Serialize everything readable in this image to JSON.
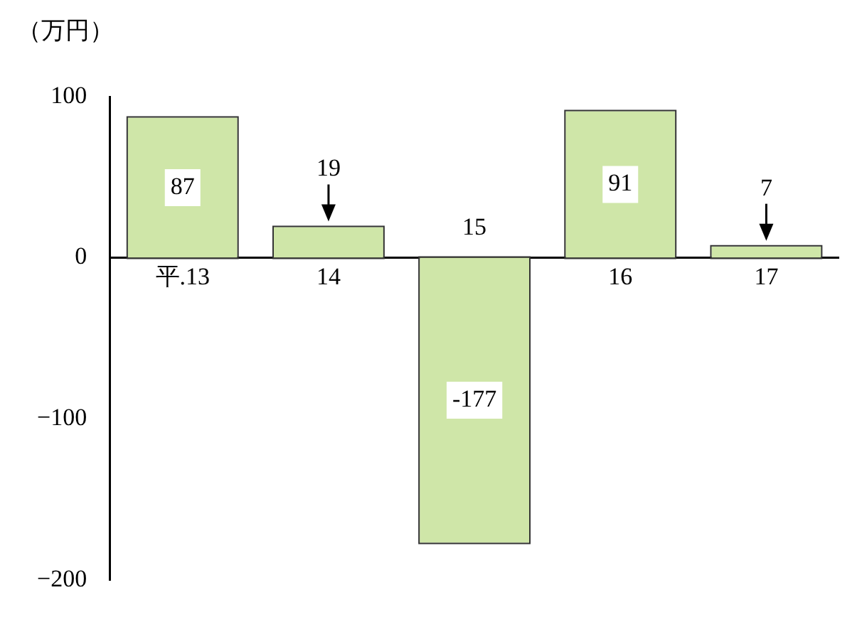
{
  "chart_data": {
    "type": "bar",
    "ylabel": "（万円）",
    "categories": [
      "平.13",
      "14",
      "15",
      "16",
      "17"
    ],
    "values": [
      87,
      19,
      -177,
      91,
      7
    ],
    "color": "#cfe6a8",
    "ylim": [
      -200,
      100
    ],
    "yticks": [
      -200,
      -100,
      0,
      100
    ],
    "data_labels": true,
    "grid": false,
    "legend": false
  }
}
